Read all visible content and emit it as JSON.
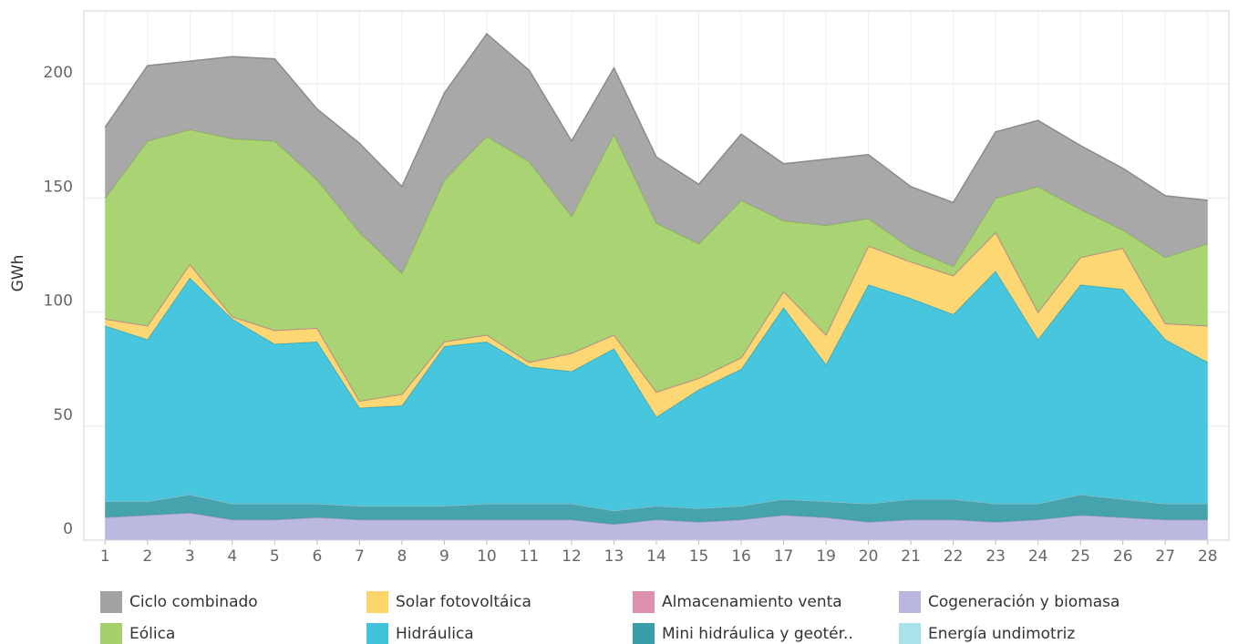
{
  "chart_data": {
    "type": "stacked_area",
    "y_label": "GWh",
    "categories": [
      "1",
      "2",
      "3",
      "4",
      "5",
      "6",
      "7",
      "8",
      "9",
      "10",
      "11",
      "12",
      "13",
      "14",
      "15",
      "16",
      "17",
      "19",
      "20",
      "21",
      "22",
      "23",
      "24",
      "25",
      "26",
      "27",
      "28"
    ],
    "ylim": [
      0,
      232
    ],
    "yticks": [
      0,
      50,
      100,
      150,
      200
    ],
    "grid": true,
    "series": [
      {
        "name": "Ciclo combinado",
        "color": "#a3a3a3",
        "values": [
          31,
          33,
          30,
          36,
          36,
          31,
          39,
          38,
          38,
          45,
          40,
          33,
          29,
          29,
          26,
          29,
          25,
          29,
          28,
          27,
          28,
          29,
          29,
          28,
          27,
          27,
          19
        ]
      },
      {
        "name": "Solar fotovoltáica",
        "color": "#fdd56b",
        "values": [
          3,
          6,
          6,
          1,
          6,
          6,
          3,
          5,
          2,
          3,
          2,
          8,
          6,
          11,
          5,
          5,
          7,
          13,
          17,
          16,
          17,
          17,
          12,
          12,
          18,
          7,
          16
        ]
      },
      {
        "name": "Almacenamiento venta",
        "color": "#dd90ae",
        "values": [
          0,
          0,
          0,
          0,
          0,
          0,
          0,
          0,
          0,
          0,
          0,
          0,
          0,
          0,
          0,
          0,
          0,
          0,
          0,
          0,
          0,
          0,
          0,
          0,
          0,
          0,
          0
        ]
      },
      {
        "name": "Cogeneración y biomasa",
        "color": "#b8b5de",
        "values": [
          10,
          11,
          12,
          9,
          9,
          10,
          9,
          9,
          9,
          9,
          9,
          9,
          7,
          9,
          8,
          9,
          11,
          10,
          8,
          9,
          9,
          8,
          9,
          11,
          10,
          9,
          9
        ]
      },
      {
        "name": "Eólica",
        "color": "#a5d16c",
        "values": [
          53,
          81,
          59,
          78,
          83,
          65,
          74,
          53,
          71,
          87,
          88,
          60,
          88,
          74,
          59,
          69,
          31,
          48,
          12,
          6,
          4,
          15,
          55,
          21,
          8,
          29,
          36
        ]
      },
      {
        "name": "Hidráulica",
        "color": "#3ec3db",
        "values": [
          77,
          71,
          95,
          81,
          70,
          71,
          43,
          44,
          70,
          71,
          60,
          58,
          71,
          39,
          52,
          60,
          84,
          60,
          96,
          88,
          81,
          102,
          72,
          92,
          92,
          72,
          62
        ]
      },
      {
        "name": "Mini hidráulica y geotér..",
        "color": "#3a9ea8",
        "values": [
          7,
          6,
          8,
          7,
          7,
          6,
          6,
          6,
          6,
          7,
          7,
          7,
          6,
          6,
          6,
          6,
          7,
          7,
          8,
          9,
          9,
          8,
          7,
          9,
          8,
          7,
          7
        ]
      },
      {
        "name": "Energía undimotriz",
        "color": "#aae2ec",
        "values": [
          0,
          0,
          0,
          0,
          0,
          0,
          0,
          0,
          0,
          0,
          0,
          0,
          0,
          0,
          0,
          0,
          0,
          0,
          0,
          0,
          0,
          0,
          0,
          0,
          0,
          0,
          0
        ]
      }
    ]
  }
}
